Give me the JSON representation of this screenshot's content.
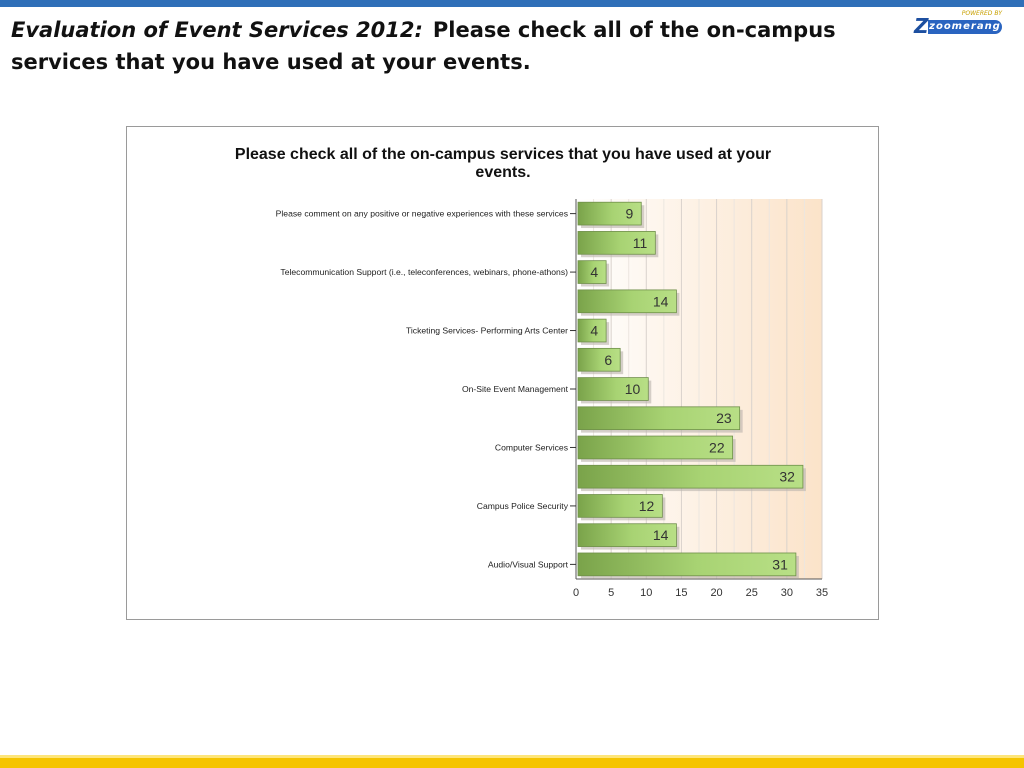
{
  "slide": {
    "title_lead": "Evaluation of Event Services 2012:",
    "title_rest": "Please check all of the on-campus services that you have used at your events."
  },
  "logo": {
    "tagline": "POWERED BY",
    "mark": "Z",
    "wordmark": "zoomerang"
  },
  "colors": {
    "top_bar": "#2f6fb8",
    "bottom_bar": "#f5c400",
    "bar_fill_dark": "#7aa34a",
    "bar_fill_light": "#a8d373"
  },
  "chart_data": {
    "type": "bar",
    "orientation": "horizontal",
    "title": "Please check all of the on-campus services that you have used at your events.",
    "categories": [
      "Please comment on any positive or negative experiences with these services",
      "",
      "Telecommunication Support (i.e., teleconferences, webinars, phone-athons)",
      "",
      "Ticketing Services- Performing Arts Center",
      "",
      "On-Site Event Management",
      "",
      "Computer Services",
      "",
      "Campus Police Security",
      "",
      "Audio/Visual Support"
    ],
    "values": [
      9,
      11,
      4,
      14,
      4,
      6,
      10,
      23,
      22,
      32,
      12,
      14,
      31
    ],
    "xlim": [
      0,
      35
    ],
    "xticks": [
      "0",
      "5",
      "10",
      "15",
      "20",
      "25",
      "30",
      "35"
    ],
    "grid": true,
    "xlabel": "",
    "ylabel": ""
  }
}
